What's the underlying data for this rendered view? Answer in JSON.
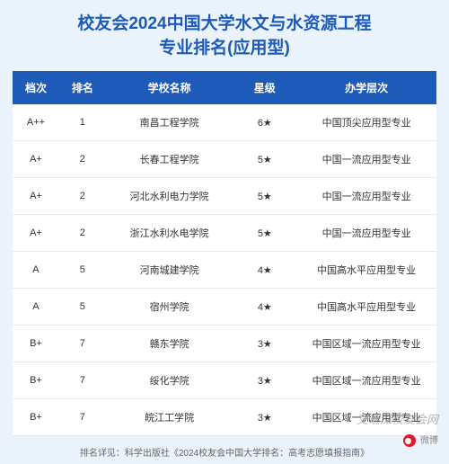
{
  "title_line1": "校友会2024中国大学水文与水资源工程",
  "title_line2": "专业排名(应用型)",
  "columns": [
    "档次",
    "排名",
    "学校名称",
    "星级",
    "办学层次"
  ],
  "rows": [
    {
      "tier": "A++",
      "rank": "1",
      "school": "南昌工程学院",
      "star": "6★",
      "level": "中国顶尖应用型专业"
    },
    {
      "tier": "A+",
      "rank": "2",
      "school": "长春工程学院",
      "star": "5★",
      "level": "中国一流应用型专业"
    },
    {
      "tier": "A+",
      "rank": "2",
      "school": "河北水利电力学院",
      "star": "5★",
      "level": "中国一流应用型专业"
    },
    {
      "tier": "A+",
      "rank": "2",
      "school": "浙江水利水电学院",
      "star": "5★",
      "level": "中国一流应用型专业"
    },
    {
      "tier": "A",
      "rank": "5",
      "school": "河南城建学院",
      "star": "4★",
      "level": "中国高水平应用型专业"
    },
    {
      "tier": "A",
      "rank": "5",
      "school": "宿州学院",
      "star": "4★",
      "level": "中国高水平应用型专业"
    },
    {
      "tier": "B+",
      "rank": "7",
      "school": "赣东学院",
      "star": "3★",
      "level": "中国区域一流应用型专业"
    },
    {
      "tier": "B+",
      "rank": "7",
      "school": "绥化学院",
      "star": "3★",
      "level": "中国区域一流应用型专业"
    },
    {
      "tier": "B+",
      "rank": "7",
      "school": "皖江工学院",
      "star": "3★",
      "level": "中国区域一流应用型专业"
    }
  ],
  "footer_text": "排名详见：科学出版社《2024校友会中国大学排名：高考志愿填报指南》",
  "watermark_text": "艾瑞深校友会网",
  "weibo_text": "微博",
  "colors": {
    "page_bg": "#eaf2fc",
    "header_bg": "#1e5bb8",
    "header_text": "#ffffff",
    "title_text": "#1e5bb8",
    "body_text": "#333333",
    "row_border": "#e8e8e8",
    "footer_text": "#666666"
  },
  "col_widths_pct": [
    11,
    11,
    30,
    15,
    33
  ],
  "font_sizes_pt": {
    "title": 19,
    "header": 12,
    "cell": 11,
    "footer": 10
  }
}
